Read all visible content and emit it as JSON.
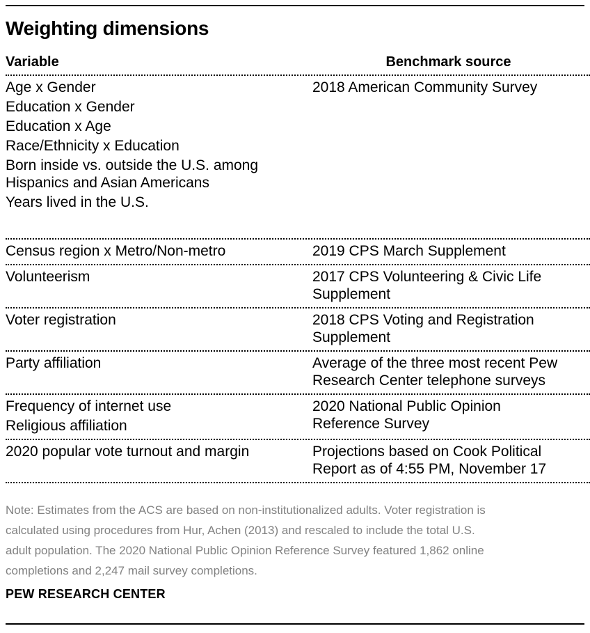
{
  "chart_data": {
    "type": "table",
    "title": "Weighting dimensions",
    "columns": [
      "Variable",
      "Benchmark source"
    ],
    "rows": [
      {
        "variables": [
          "Age x Gender",
          "Education x Gender",
          "Education x Age",
          "Race/Ethnicity x Education",
          "Born inside vs. outside the U.S. among\nHispanics and Asian Americans",
          "Years lived in the U.S."
        ],
        "benchmark": "2018 American Community Survey"
      },
      {
        "variables": [
          "Census region x Metro/Non-metro"
        ],
        "benchmark": "2019 CPS March Supplement"
      },
      {
        "variables": [
          "Volunteerism"
        ],
        "benchmark": "2017 CPS Volunteering & Civic Life\nSupplement"
      },
      {
        "variables": [
          "Voter registration"
        ],
        "benchmark": "2018 CPS Voting and Registration\nSupplement"
      },
      {
        "variables": [
          "Party affiliation"
        ],
        "benchmark": "Average of the three most recent Pew\nResearch Center telephone surveys"
      },
      {
        "variables": [
          "Frequency of internet use",
          "Religious affiliation"
        ],
        "benchmark": "2020 National Public Opinion\nReference Survey"
      },
      {
        "variables": [
          "2020 popular vote turnout and margin"
        ],
        "benchmark": "Projections based on Cook Political\nReport as of 4:55 PM, November 17"
      }
    ],
    "note": "Note: Estimates from the ACS are based on non-institutionalized adults. Voter registration is\ncalculated using procedures from Hur, Achen (2013) and rescaled to include the total U.S.\nadult population. The 2020 National Public Opinion Reference Survey featured 1,862 online\ncompletions and 2,247 mail survey completions.",
    "source_label": "PEW RESEARCH CENTER"
  },
  "colors": {
    "text": "#000000",
    "note_text": "#828282",
    "rule": "#000000"
  }
}
